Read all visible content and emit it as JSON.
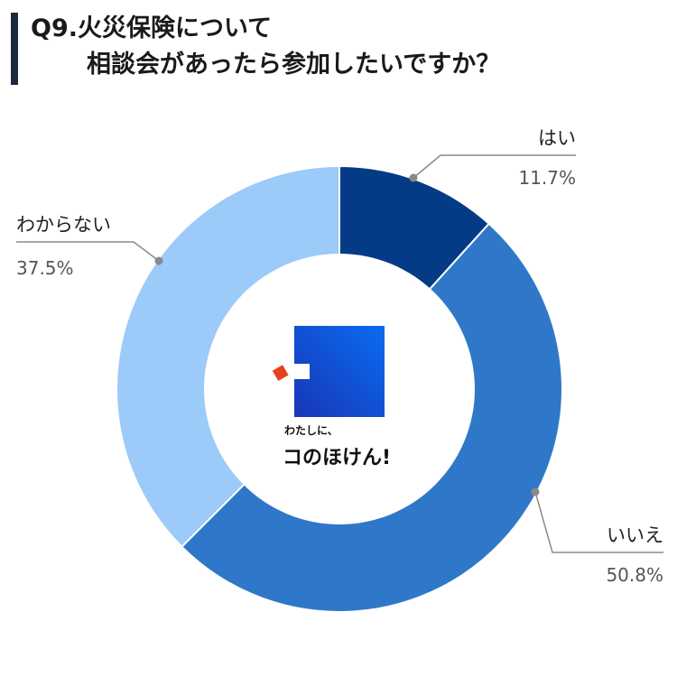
{
  "title": {
    "line1": "Q9.火災保険について",
    "line2": "相談会があったら参加したいですか？"
  },
  "logo": {
    "small_text": "わたしに、",
    "big_text": "コのほけん!"
  },
  "chart_data": {
    "type": "pie",
    "style": "donut",
    "start_angle_deg": 0,
    "direction": "clockwise",
    "slices": [
      {
        "label": "はい",
        "value": 11.7,
        "display": "11.7%",
        "color": "#053b86"
      },
      {
        "label": "いいえ",
        "value": 50.8,
        "display": "50.8%",
        "color": "#2f78c9"
      },
      {
        "label": "わからない",
        "value": 37.5,
        "display": "37.5%",
        "color": "#9ccaf9"
      }
    ]
  }
}
